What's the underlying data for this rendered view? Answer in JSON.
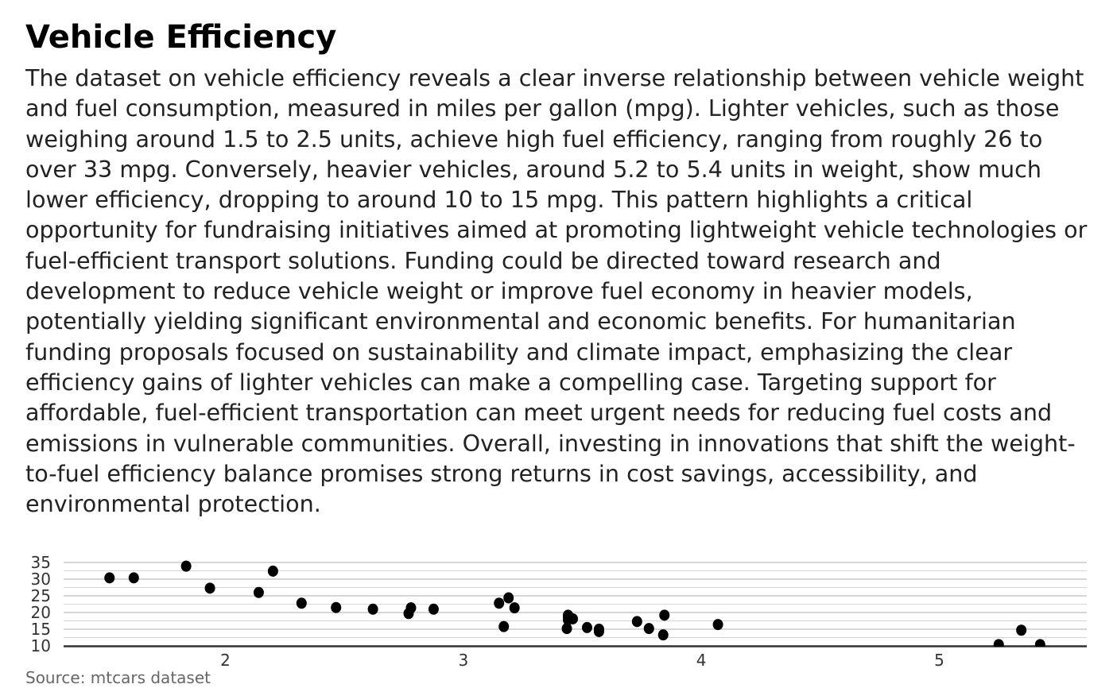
{
  "title": "Vehicle Efficiency",
  "subtitle": "The dataset on vehicle efficiency reveals a clear inverse relationship between vehicle weight and fuel consumption, measured in miles per gallon (mpg). Lighter vehicles, such as those weighing around 1.5 to 2.5 units, achieve high fuel efficiency, ranging from roughly 26 to over 33 mpg. Conversely, heavier vehicles, around 5.2 to 5.4 units in weight, show much lower efficiency, dropping to around 10 to 15 mpg. This pattern highlights a critical opportunity for fundraising initiatives aimed at promoting lightweight vehicle technologies or fuel-efficient transport solutions. Funding could be directed toward research and development to reduce vehicle weight or improve fuel economy in heavier models, potentially yielding significant environmental and economic benefits. For humanitarian funding proposals focused on sustainability and climate impact, emphasizing the clear efficiency gains of lighter vehicles can make a compelling case. Targeting support for affordable, fuel-efficient transportation can meet urgent needs for reducing fuel costs and emissions in vulnerable communities. Overall, investing in innovations that shift the weight-to-fuel efficiency balance promises strong returns in cost savings, accessibility, and environmental protection.",
  "caption": "Source: mtcars dataset",
  "chart_data": {
    "type": "scatter",
    "xlabel": "",
    "ylabel": "",
    "xlim": [
      1.32,
      5.62
    ],
    "ylim": [
      10,
      35
    ],
    "xticks": [
      "2",
      "3",
      "4",
      "5"
    ],
    "yticks": [
      "10",
      "15",
      "20",
      "25",
      "30",
      "35"
    ],
    "grid": true,
    "point_color": "#000000",
    "x": [
      2.62,
      2.875,
      2.32,
      3.215,
      3.44,
      3.46,
      3.57,
      3.19,
      3.15,
      3.44,
      3.44,
      4.07,
      3.73,
      3.78,
      5.25,
      5.424,
      5.345,
      2.2,
      1.615,
      1.835,
      2.465,
      3.52,
      3.435,
      3.84,
      3.845,
      1.935,
      2.14,
      1.513,
      3.17,
      2.77,
      3.57,
      2.78
    ],
    "y": [
      21.0,
      21.0,
      22.8,
      21.4,
      18.7,
      18.1,
      14.3,
      24.4,
      22.8,
      19.2,
      17.8,
      16.4,
      17.3,
      15.2,
      10.4,
      10.4,
      14.7,
      32.4,
      30.4,
      33.9,
      21.5,
      15.5,
      15.2,
      13.3,
      19.2,
      27.3,
      26.0,
      30.4,
      15.8,
      19.7,
      15.0,
      21.4
    ]
  }
}
